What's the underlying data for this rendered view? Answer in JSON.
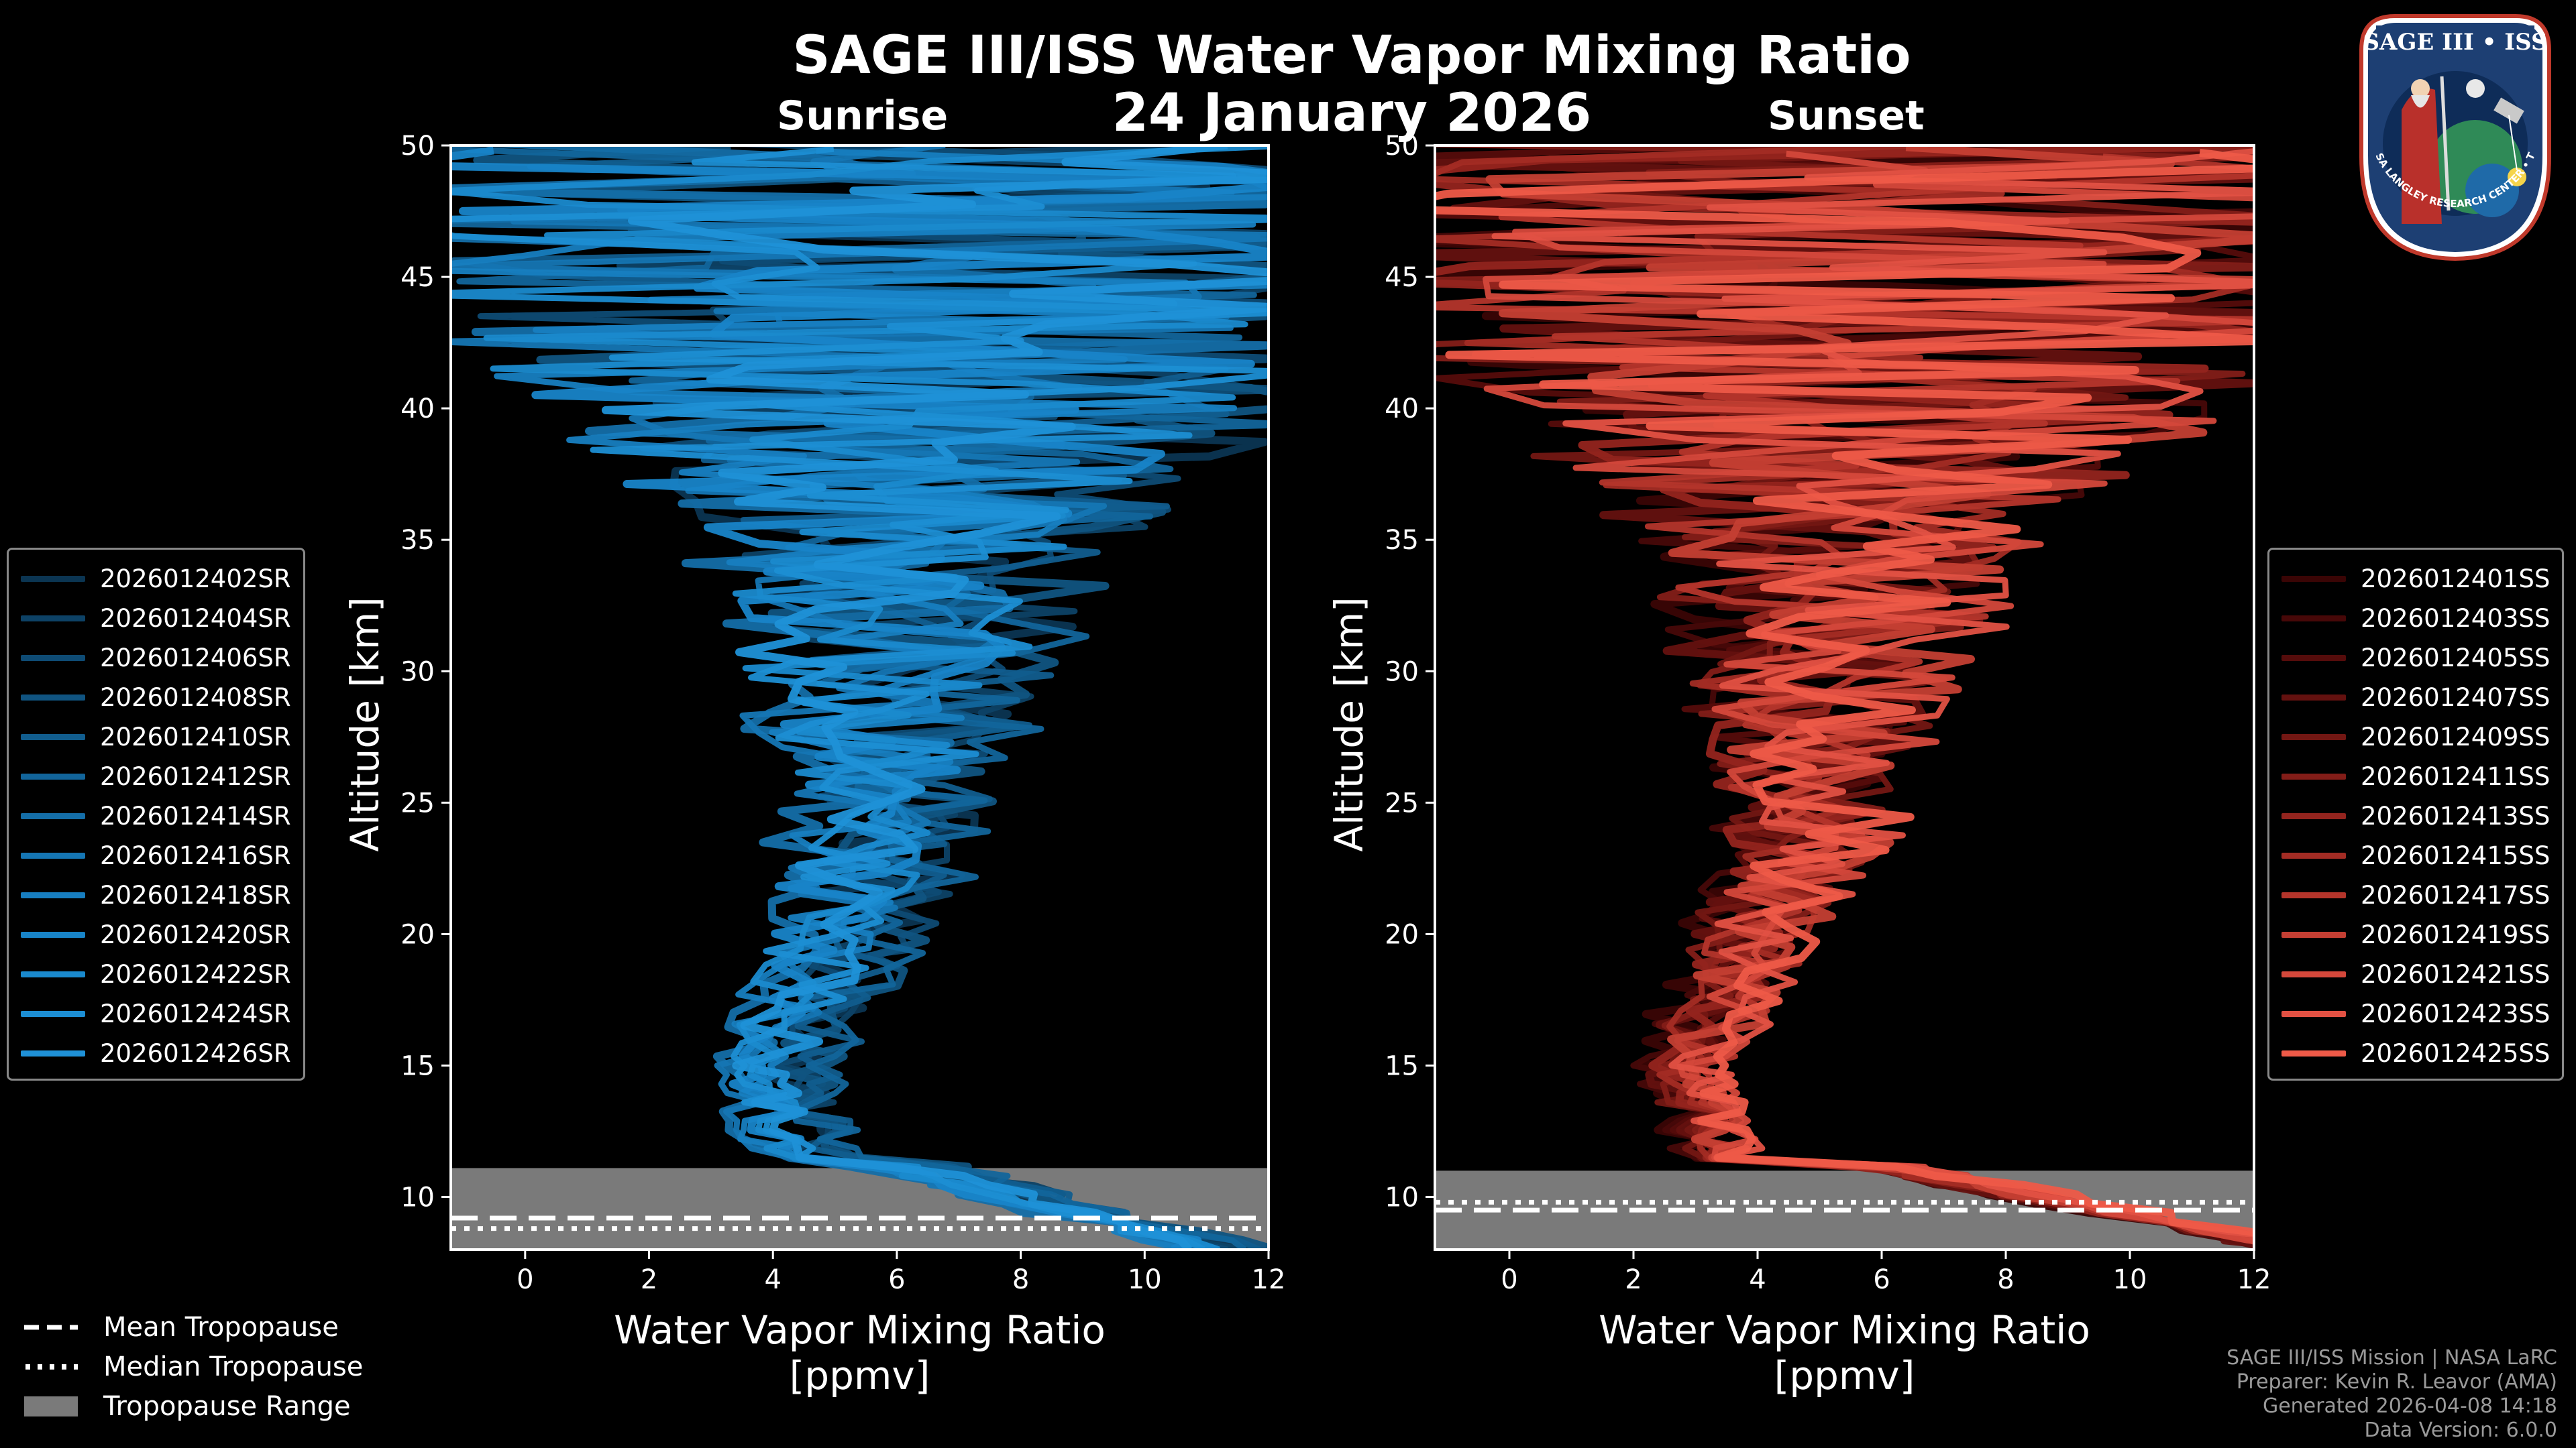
{
  "title": "SAGE III/ISS Water Vapor Mixing Ratio",
  "date": "24 January 2026",
  "colors": {
    "sunrise": "#1f8fd6",
    "sunset": "#ee5a48",
    "tropopause_fill": "#7a7a7a",
    "background": "#000000"
  },
  "logo": {
    "title": "SAGE III • ISS",
    "arc_text": "BALL • NASA LANGLEY RESEARCH CENTER • TAS-I • ESA"
  },
  "chart_data": [
    {
      "type": "line",
      "panel_title": "Sunrise",
      "xlabel": "Water Vapor Mixing Ratio\n[ppmv]",
      "ylabel": "Altitude [km]",
      "xlim": [
        -1.2,
        12
      ],
      "ylim": [
        8,
        50
      ],
      "xticks": [
        0,
        2,
        4,
        6,
        8,
        10,
        12
      ],
      "yticks": [
        10,
        15,
        20,
        25,
        30,
        35,
        40,
        45,
        50
      ],
      "tropopause": {
        "mean": 9.2,
        "median": 8.8,
        "min": 8.0,
        "max": 11.1
      },
      "series": [
        {
          "name": "2026012402SR",
          "color": "#0b3552"
        },
        {
          "name": "2026012404SR",
          "color": "#0d4266"
        },
        {
          "name": "2026012406SR",
          "color": "#0e4b74"
        },
        {
          "name": "2026012408SR",
          "color": "#105481"
        },
        {
          "name": "2026012410SR",
          "color": "#115d8e"
        },
        {
          "name": "2026012412SR",
          "color": "#12659b"
        },
        {
          "name": "2026012414SR",
          "color": "#146ea8"
        },
        {
          "name": "2026012416SR",
          "color": "#1576b4"
        },
        {
          "name": "2026012418SR",
          "color": "#177ec0"
        },
        {
          "name": "2026012420SR",
          "color": "#1884c8"
        },
        {
          "name": "2026012422SR",
          "color": "#1a8ace"
        },
        {
          "name": "2026012424SR",
          "color": "#1c8ed3"
        },
        {
          "name": "2026012426SR",
          "color": "#1f91d7"
        }
      ]
    },
    {
      "type": "line",
      "panel_title": "Sunset",
      "xlabel": "Water Vapor Mixing Ratio\n[ppmv]",
      "ylabel": "Altitude [km]",
      "xlim": [
        -1.2,
        12
      ],
      "ylim": [
        8,
        50
      ],
      "xticks": [
        0,
        2,
        4,
        6,
        8,
        10,
        12
      ],
      "yticks": [
        10,
        15,
        20,
        25,
        30,
        35,
        40,
        45,
        50
      ],
      "tropopause": {
        "mean": 9.5,
        "median": 9.8,
        "min": 8.0,
        "max": 11.0
      },
      "series": [
        {
          "name": "2026012401SS",
          "color": "#3a0505"
        },
        {
          "name": "2026012403SS",
          "color": "#470808"
        },
        {
          "name": "2026012405SS",
          "color": "#550c0b"
        },
        {
          "name": "2026012407SS",
          "color": "#64110f"
        },
        {
          "name": "2026012409SS",
          "color": "#731713"
        },
        {
          "name": "2026012411SS",
          "color": "#831d18"
        },
        {
          "name": "2026012413SS",
          "color": "#93241e"
        },
        {
          "name": "2026012415SS",
          "color": "#a32c24"
        },
        {
          "name": "2026012417SS",
          "color": "#b4352b"
        },
        {
          "name": "2026012419SS",
          "color": "#c43f33"
        },
        {
          "name": "2026012421SS",
          "color": "#d4483b"
        },
        {
          "name": "2026012423SS",
          "color": "#e25143"
        },
        {
          "name": "2026012425SS",
          "color": "#ee5a48"
        }
      ]
    }
  ],
  "bottom_legend": {
    "mean_label": "Mean Tropopause",
    "median_label": "Median Tropopause",
    "range_label": "Tropopause Range"
  },
  "credits": {
    "line1": "SAGE III/ISS Mission | NASA LaRC",
    "line2": "Preparer: Kevin R. Leavor (AMA)",
    "line3": "Generated 2026-04-08 14:18",
    "line4": "Data Version: 6.0.0"
  }
}
